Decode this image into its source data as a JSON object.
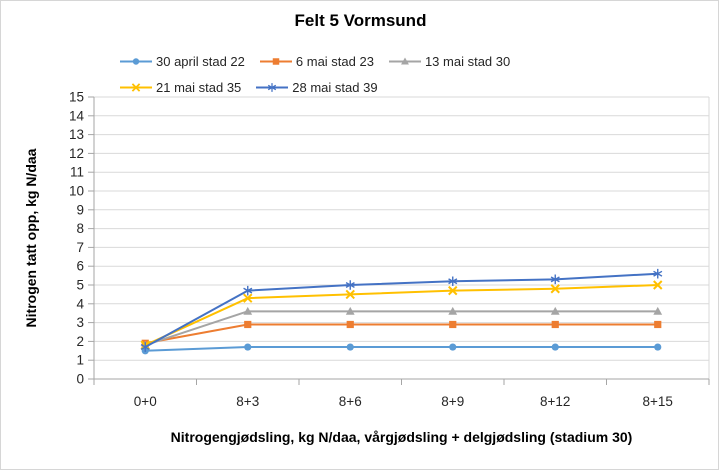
{
  "figure": {
    "background": "#FFFFFF",
    "border_color": "#D6D6D6"
  },
  "chart_data": {
    "type": "line",
    "title": "Felt 5 Vormsund",
    "xlabel": "Nitrogengjødsling, kg N/daa, vårgjødsling + delgjødsling (stadium 30)",
    "ylabel": "Nitrogen tatt opp, kg N/daa",
    "categories": [
      "0+0",
      "8+3",
      "8+6",
      "8+9",
      "8+12",
      "8+15"
    ],
    "ylim": [
      0,
      15
    ],
    "ytick_step": 1,
    "grid": "horizontal",
    "legend_position": "top",
    "series": [
      {
        "name": "30 april stad 22",
        "color": "#5B9BD5",
        "marker": "circle",
        "values": [
          1.5,
          1.7,
          1.7,
          1.7,
          1.7,
          1.7
        ]
      },
      {
        "name": "6 mai stad 23",
        "color": "#ED7D31",
        "marker": "square",
        "values": [
          1.9,
          2.9,
          2.9,
          2.9,
          2.9,
          2.9
        ]
      },
      {
        "name": "13 mai stad 30",
        "color": "#A5A5A5",
        "marker": "triangle",
        "values": [
          1.8,
          3.6,
          3.6,
          3.6,
          3.6,
          3.6
        ]
      },
      {
        "name": "21 mai stad 35",
        "color": "#FFC000",
        "marker": "x",
        "values": [
          1.8,
          4.3,
          4.5,
          4.7,
          4.8,
          5.0
        ]
      },
      {
        "name": "28 mai stad 39",
        "color": "#4472C4",
        "marker": "asterisk",
        "values": [
          1.7,
          4.7,
          5.0,
          5.2,
          5.3,
          5.6
        ]
      }
    ],
    "colors": {
      "gridline": "#D9D9D9",
      "axis": "#A6A6A6",
      "tick_text": "#262626"
    }
  }
}
